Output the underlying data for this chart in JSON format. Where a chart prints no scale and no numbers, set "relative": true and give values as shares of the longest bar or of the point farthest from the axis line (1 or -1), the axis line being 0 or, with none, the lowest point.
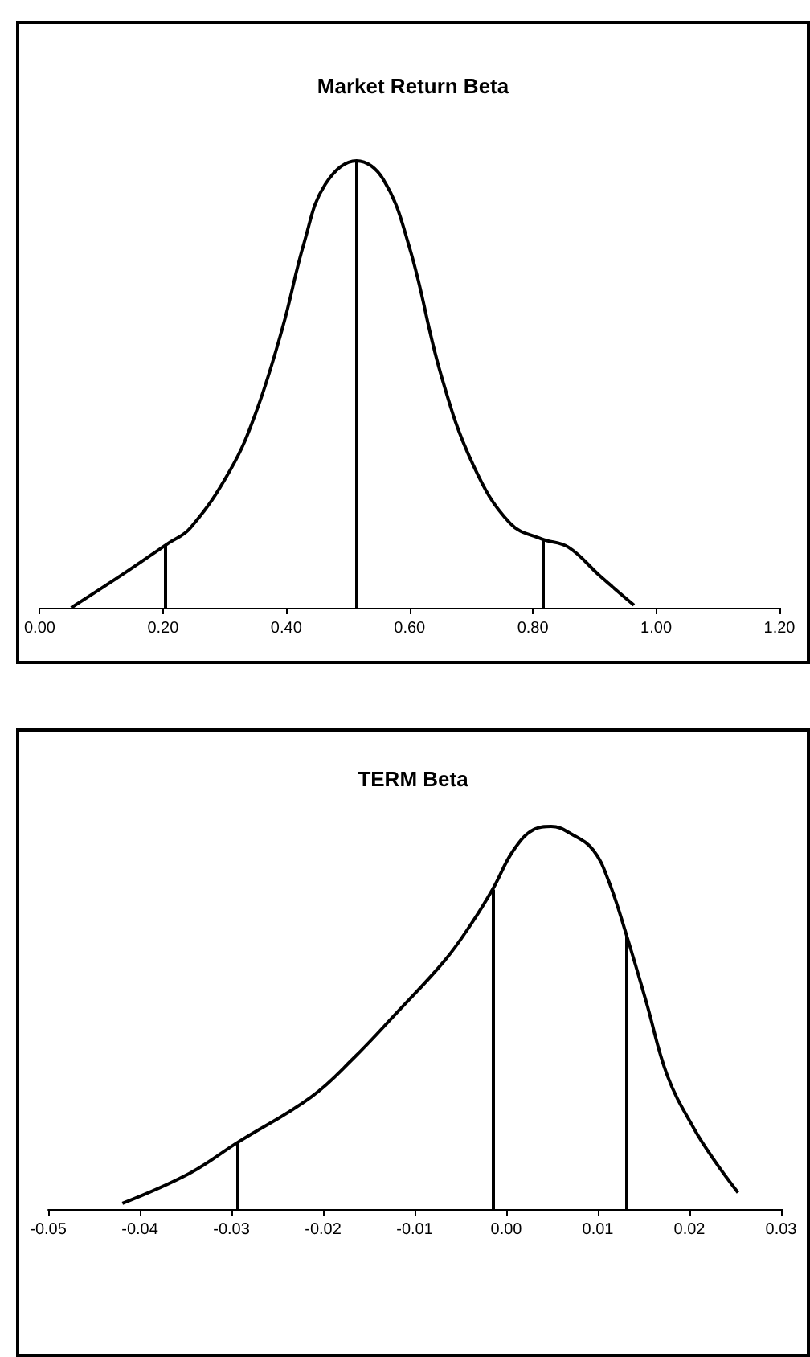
{
  "chart_data": [
    {
      "type": "line",
      "title": "Market Return Beta",
      "relative": true,
      "marker": "none",
      "grid": false,
      "color": "#000000",
      "x": [
        0.051,
        0.137,
        0.206,
        0.244,
        0.309,
        0.351,
        0.394,
        0.429,
        0.463,
        0.514,
        0.557,
        0.6,
        0.651,
        0.703,
        0.763,
        0.814,
        0.857,
        0.909,
        0.964
      ],
      "values": [
        0,
        0.077,
        0.142,
        0.178,
        0.308,
        0.438,
        0.627,
        0.817,
        0.947,
        1,
        0.959,
        0.805,
        0.521,
        0.32,
        0.189,
        0.154,
        0.136,
        0.071,
        0.006
      ],
      "xlim": [
        0,
        1.2
      ],
      "xticks": [
        {
          "value": 0,
          "label": "0.00"
        },
        {
          "value": 0.2,
          "label": "0.20"
        },
        {
          "value": 0.4,
          "label": "0.40"
        },
        {
          "value": 0.6,
          "label": "0.60"
        },
        {
          "value": 0.8,
          "label": "0.80"
        },
        {
          "value": 1,
          "label": "1.00"
        },
        {
          "value": 1.2,
          "label": "1.20"
        }
      ],
      "ref_lines": [
        {
          "axis": "x",
          "value": 0.204,
          "color": "#000000"
        },
        {
          "axis": "x",
          "value": 0.513,
          "color": "#000000"
        },
        {
          "axis": "x",
          "value": 0.817,
          "color": "#000000"
        }
      ]
    },
    {
      "type": "line",
      "title": "TERM Beta",
      "relative": true,
      "marker": "none",
      "grid": false,
      "color": "#000000",
      "x": [
        -0.0419,
        -0.0346,
        -0.0294,
        -0.0213,
        -0.0166,
        -0.012,
        -0.0067,
        -0.0038,
        -0.0015,
        0.0008,
        0.0031,
        0.0049,
        0.0072,
        0.0095,
        0.0112,
        0.0131,
        0.0153,
        0.0176,
        0.0205,
        0.0229,
        0.0253
      ],
      "values": [
        0.015,
        0.093,
        0.173,
        0.293,
        0.396,
        0.512,
        0.65,
        0.746,
        0.835,
        0.938,
        0.993,
        1,
        0.979,
        0.938,
        0.856,
        0.718,
        0.54,
        0.348,
        0.21,
        0.121,
        0.043
      ],
      "xlim": [
        -0.05,
        0.03
      ],
      "xticks": [
        {
          "value": -0.05,
          "label": "-0.05"
        },
        {
          "value": -0.04,
          "label": "-0.04"
        },
        {
          "value": -0.03,
          "label": "-0.03"
        },
        {
          "value": -0.02,
          "label": "-0.02"
        },
        {
          "value": -0.01,
          "label": "-0.01"
        },
        {
          "value": 0,
          "label": "0.00"
        },
        {
          "value": 0.01,
          "label": "0.01"
        },
        {
          "value": 0.02,
          "label": "0.02"
        },
        {
          "value": 0.03,
          "label": "0.03"
        }
      ],
      "ref_lines": [
        {
          "axis": "x",
          "value": -0.0293,
          "color": "#000000"
        },
        {
          "axis": "x",
          "value": -0.0015,
          "color": "#000000"
        },
        {
          "axis": "x",
          "value": 0.0131,
          "color": "#000000"
        }
      ]
    }
  ]
}
